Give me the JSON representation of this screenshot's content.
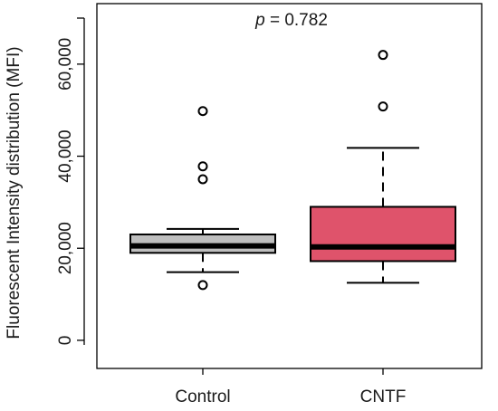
{
  "chart_data": {
    "type": "boxplot",
    "annotation": {
      "prefix": "p",
      "text": " = 0.782"
    },
    "ylabel": "Fluorescent Intensity distribution (MFI)",
    "xlabel": "",
    "ylim": [
      -1000,
      70000
    ],
    "yticks": [
      0,
      20000,
      40000,
      60000
    ],
    "ytick_labels": [
      "0",
      "20,000",
      "40,000",
      "60,000"
    ],
    "grid": false,
    "categories": [
      "Control",
      "CNTF"
    ],
    "series": [
      {
        "name": "Control",
        "color": "#bebebe",
        "whisker_low": 14800,
        "q1": 19000,
        "median": 20500,
        "q3": 23000,
        "whisker_high": 24200,
        "outliers": [
          12000,
          35000,
          37800,
          49800
        ]
      },
      {
        "name": "CNTF",
        "color": "#df536b",
        "whisker_low": 12500,
        "q1": 17200,
        "median": 20300,
        "q3": 29000,
        "whisker_high": 41800,
        "outliers": [
          50800,
          62000
        ]
      }
    ]
  }
}
